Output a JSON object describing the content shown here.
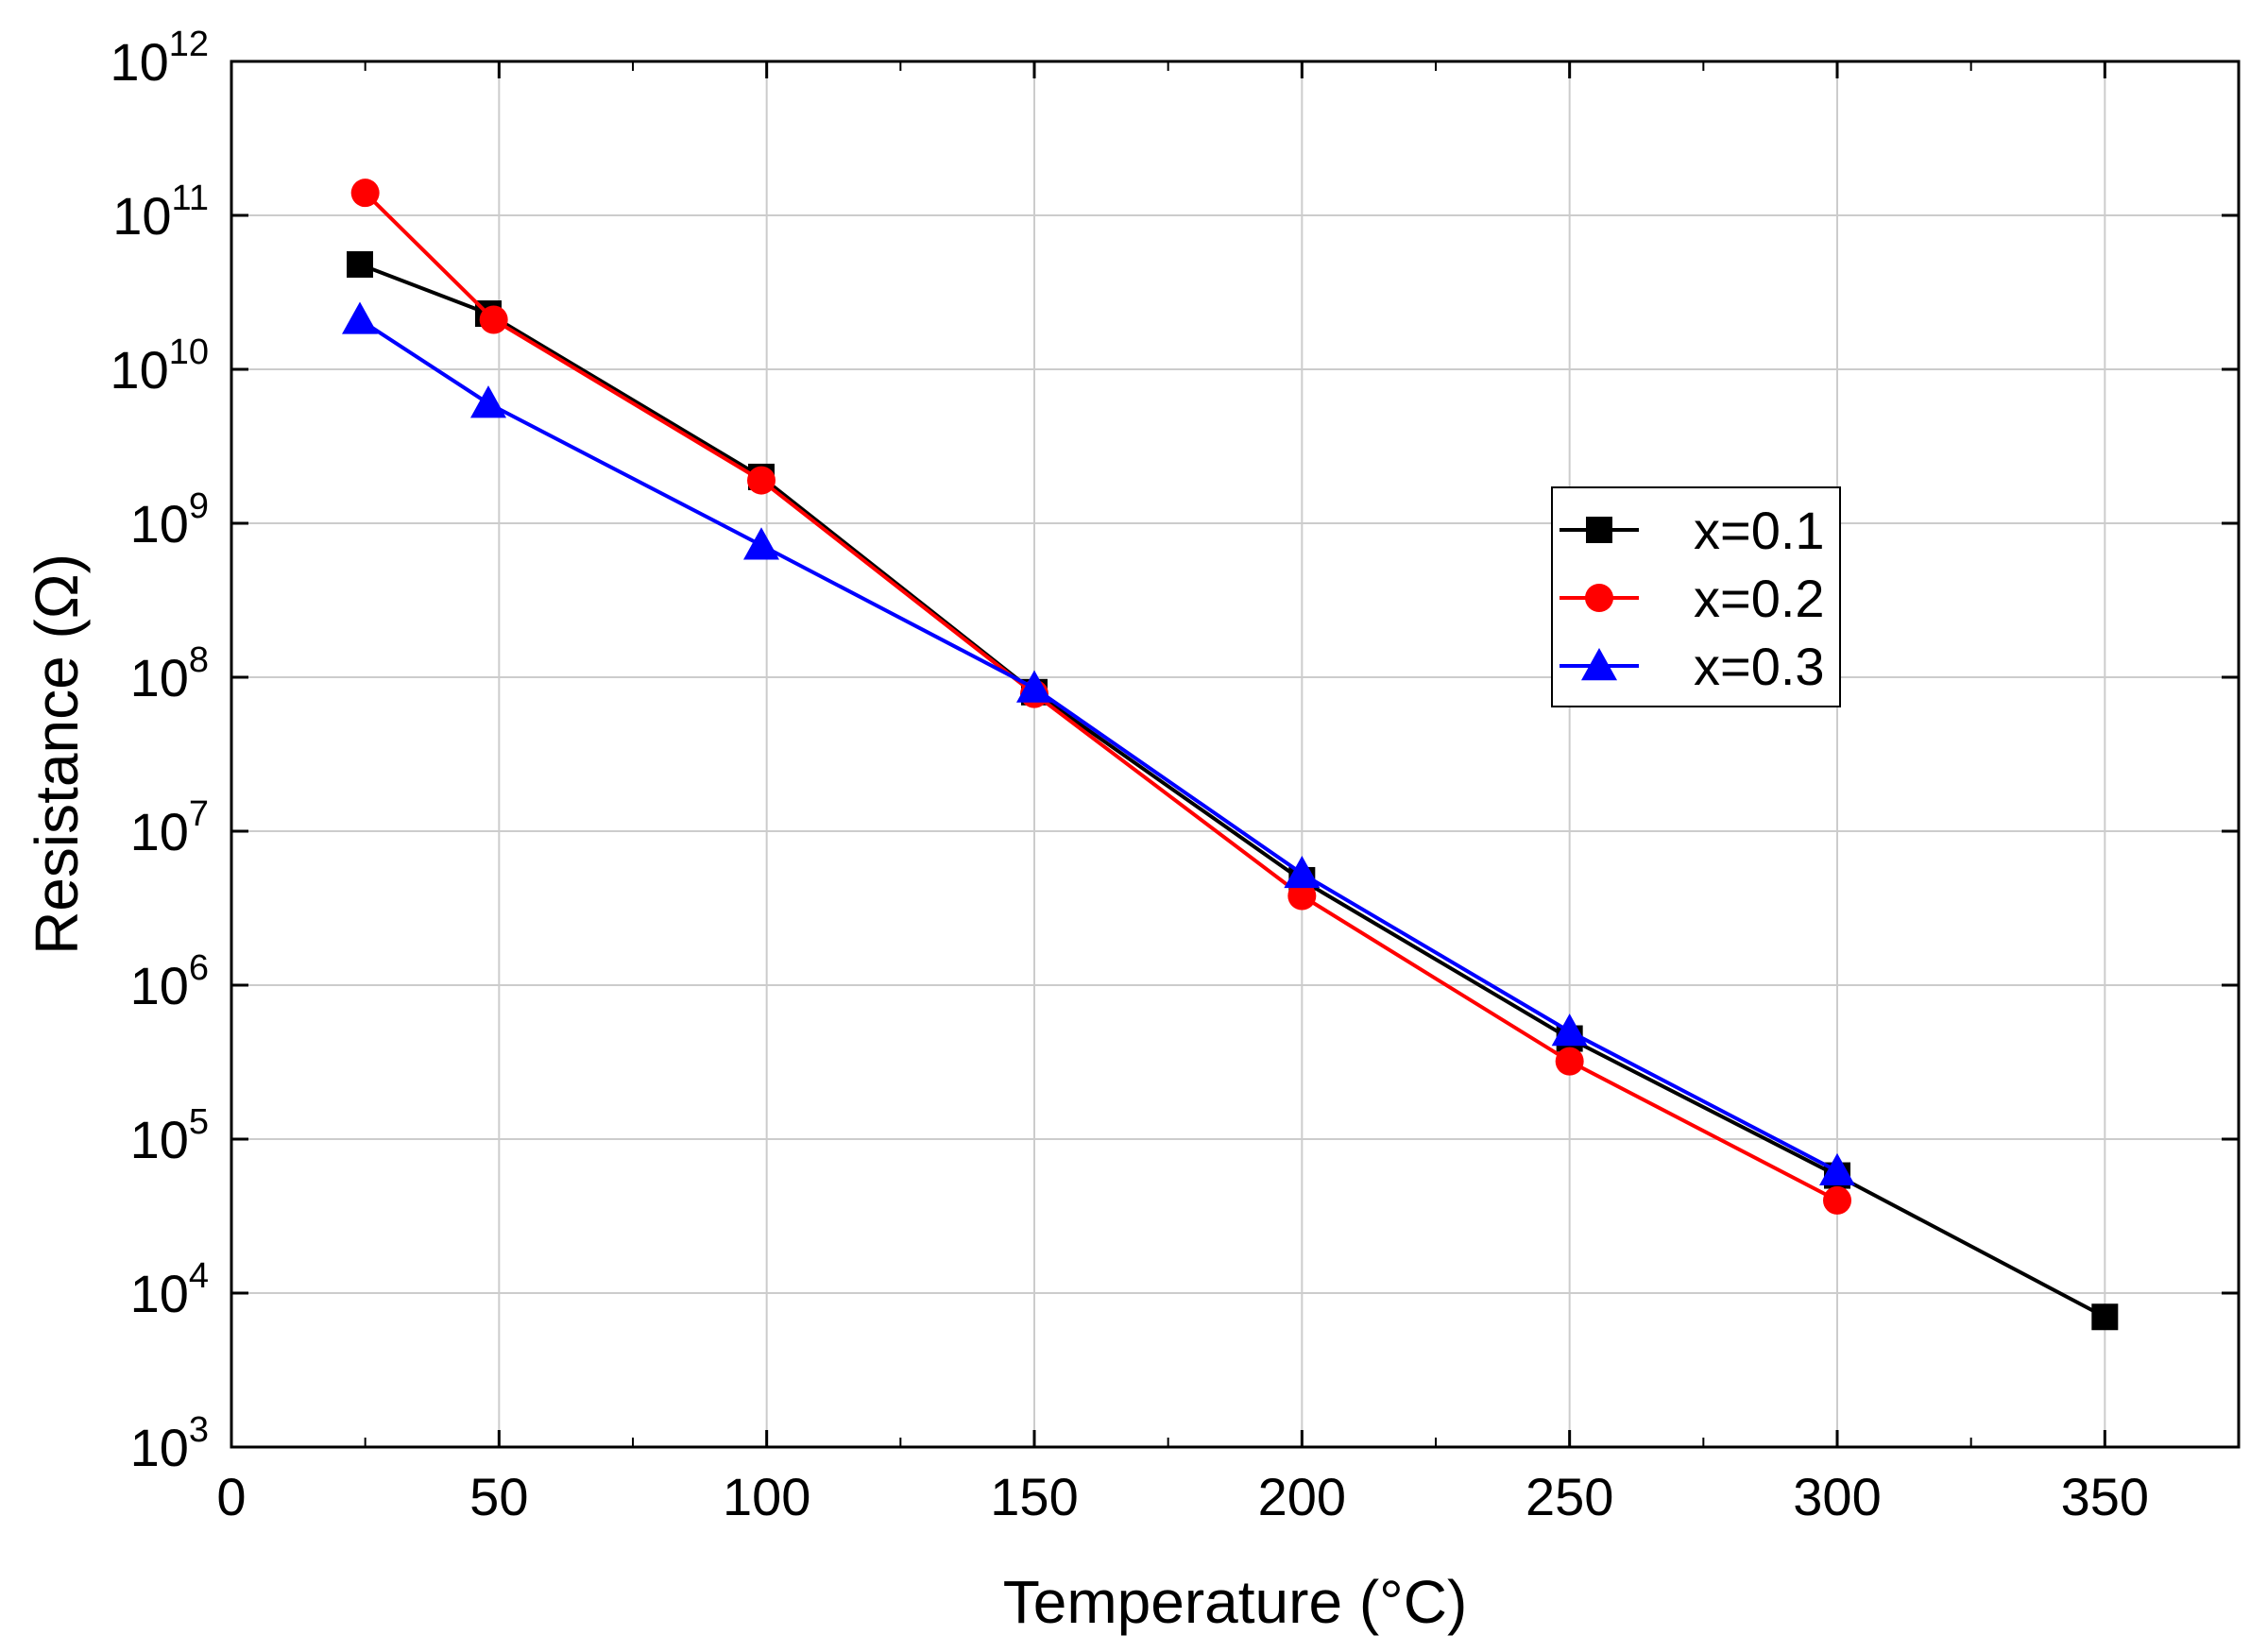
{
  "chart_data": {
    "type": "line",
    "title": "",
    "xlabel": "Temperature (°C)",
    "ylabel": "Resistance (Ω)",
    "xlim": [
      0,
      375
    ],
    "ylim": [
      1000,
      1000000000000
    ],
    "yscale": "log",
    "x_ticks": [
      0,
      50,
      100,
      150,
      200,
      250,
      300,
      350
    ],
    "y_ticks": [
      {
        "base": "10",
        "exp": "3",
        "value": 1000
      },
      {
        "base": "10",
        "exp": "4",
        "value": 10000
      },
      {
        "base": "10",
        "exp": "5",
        "value": 100000
      },
      {
        "base": "10",
        "exp": "6",
        "value": 1000000
      },
      {
        "base": "10",
        "exp": "7",
        "value": 10000000
      },
      {
        "base": "10",
        "exp": "8",
        "value": 100000000
      },
      {
        "base": "10",
        "exp": "9",
        "value": 1000000000
      },
      {
        "base": "10",
        "exp": "10",
        "value": 10000000000
      },
      {
        "base": "10",
        "exp": "11",
        "value": 100000000000
      },
      {
        "base": "10",
        "exp": "12",
        "value": 1000000000000
      }
    ],
    "grid": true,
    "legend_position": "right-middle",
    "series": [
      {
        "name": "x=0.1",
        "color": "#000000",
        "marker": "square",
        "x": [
          24,
          48,
          99,
          150,
          200,
          250,
          300,
          350
        ],
        "values": [
          48000000000,
          23000000000,
          2000000000,
          80000000,
          4800000,
          450000,
          58000,
          7000
        ]
      },
      {
        "name": "x=0.2",
        "color": "#ff0000",
        "marker": "circle",
        "x": [
          25,
          49,
          99,
          150,
          200,
          250,
          300
        ],
        "values": [
          140000000000,
          21000000000,
          1900000000,
          78000000,
          3800000,
          320000,
          40000
        ]
      },
      {
        "name": "x=0.3",
        "color": "#0000ff",
        "marker": "triangle",
        "x": [
          24,
          48,
          99,
          150,
          200,
          250,
          300
        ],
        "values": [
          21000000000,
          6000000000,
          720000000,
          85000000,
          5300000,
          500000,
          62000
        ]
      }
    ]
  }
}
